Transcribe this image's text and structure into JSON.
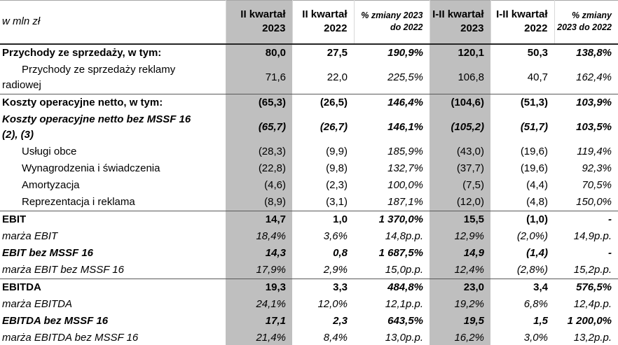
{
  "table": {
    "unit_label": "w mln zł",
    "highlight_color": "#bfbfbf",
    "columns": [
      {
        "label": "II kwartał 2023",
        "highlight": true,
        "change": false
      },
      {
        "label": "II kwartał 2022",
        "highlight": false,
        "change": false
      },
      {
        "label": "% zmiany 2023 do 2022",
        "highlight": false,
        "change": true
      },
      {
        "label": "I-II kwartał 2023",
        "highlight": true,
        "change": false
      },
      {
        "label": "I-II kwartał 2022",
        "highlight": false,
        "change": false
      },
      {
        "label": "% zmiany 2023 do 2022",
        "highlight": false,
        "change": true
      }
    ],
    "rows": [
      {
        "label": "Przychody ze sprzedaży, w tym:",
        "style": "bold",
        "section_end": false,
        "values": [
          "80,0",
          "27,5",
          "190,9%",
          "120,1",
          "50,3",
          "138,8%"
        ]
      },
      {
        "label": "Przychody ze sprzedaży reklamy radiowej",
        "style": "plain",
        "section_end": true,
        "values": [
          "71,6",
          "22,0",
          "225,5%",
          "106,8",
          "40,7",
          "162,4%"
        ]
      },
      {
        "label": "Koszty operacyjne netto, w tym:",
        "style": "bold",
        "section_end": false,
        "values": [
          "(65,3)",
          "(26,5)",
          "146,4%",
          "(104,6)",
          "(51,3)",
          "103,9%"
        ]
      },
      {
        "label": "Koszty operacyjne netto bez MSSF 16 (2), (3)",
        "style": "bolditalic",
        "section_end": false,
        "values": [
          "(65,7)",
          "(26,7)",
          "146,1%",
          "(105,2)",
          "(51,7)",
          "103,5%"
        ]
      },
      {
        "label": "Usługi obce",
        "style": "plain",
        "section_end": false,
        "values": [
          "(28,3)",
          "(9,9)",
          "185,9%",
          "(43,0)",
          "(19,6)",
          "119,4%"
        ]
      },
      {
        "label": "Wynagrodzenia i świadczenia",
        "style": "plain",
        "section_end": false,
        "values": [
          "(22,8)",
          "(9,8)",
          "132,7%",
          "(37,7)",
          "(19,6)",
          "92,3%"
        ]
      },
      {
        "label": "Amortyzacja",
        "style": "plain",
        "section_end": false,
        "values": [
          "(4,6)",
          "(2,3)",
          "100,0%",
          "(7,5)",
          "(4,4)",
          "70,5%"
        ]
      },
      {
        "label": "Reprezentacja i reklama",
        "style": "plain",
        "section_end": true,
        "values": [
          "(8,9)",
          "(3,1)",
          "187,1%",
          "(12,0)",
          "(4,8)",
          "150,0%"
        ]
      },
      {
        "label": "EBIT",
        "style": "bold",
        "section_end": false,
        "values": [
          "14,7",
          "1,0",
          "1 370,0%",
          "15,5",
          "(1,0)",
          "-"
        ]
      },
      {
        "label": "marża EBIT",
        "style": "italic",
        "section_end": false,
        "values": [
          "18,4%",
          "3,6%",
          "14,8p.p.",
          "12,9%",
          "(2,0%)",
          "14,9p.p."
        ]
      },
      {
        "label": "EBIT bez MSSF 16",
        "style": "bolditalic",
        "section_end": false,
        "values": [
          "14,3",
          "0,8",
          "1 687,5%",
          "14,9",
          "(1,4)",
          "-"
        ]
      },
      {
        "label": "marża EBIT bez MSSF 16",
        "style": "italic",
        "section_end": true,
        "values": [
          "17,9%",
          "2,9%",
          "15,0p.p.",
          "12,4%",
          "(2,8%)",
          "15,2p.p."
        ]
      },
      {
        "label": "EBITDA",
        "style": "bold",
        "section_end": false,
        "values": [
          "19,3",
          "3,3",
          "484,8%",
          "23,0",
          "3,4",
          "576,5%"
        ]
      },
      {
        "label": "marża EBITDA",
        "style": "italic",
        "section_end": false,
        "values": [
          "24,1%",
          "12,0%",
          "12,1p.p.",
          "19,2%",
          "6,8%",
          "12,4p.p."
        ]
      },
      {
        "label": "EBITDA bez MSSF 16",
        "style": "bolditalic",
        "section_end": false,
        "values": [
          "17,1",
          "2,3",
          "643,5%",
          "19,5",
          "1,5",
          "1 200,0%"
        ]
      },
      {
        "label": "marża EBITDA bez MSSF 16",
        "style": "italic",
        "section_end": false,
        "values": [
          "21,4%",
          "8,4%",
          "13,0p.p.",
          "16,2%",
          "3,0%",
          "13,2p.p."
        ]
      }
    ]
  }
}
